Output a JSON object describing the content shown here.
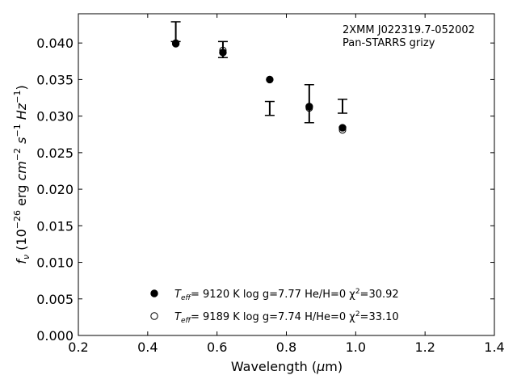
{
  "chart_data": {
    "type": "scatter",
    "title": "",
    "xlabel": "Wavelength (μm)",
    "ylabel": "f_ν (10^-26 erg cm^-2 s^-1 Hz^-1)",
    "xlim": [
      0.2,
      1.4
    ],
    "ylim": [
      0.0,
      0.044
    ],
    "x_ticks": [
      "0.2",
      "0.4",
      "0.6",
      "0.8",
      "1.0",
      "1.2",
      "1.4"
    ],
    "y_ticks": [
      "0.000",
      "0.005",
      "0.010",
      "0.015",
      "0.020",
      "0.025",
      "0.030",
      "0.035",
      "0.040"
    ],
    "annotation": [
      "2XMM J022319.7-052002",
      "Pan-STARRS grizy"
    ],
    "observed": {
      "x": [
        0.481,
        0.617,
        0.752,
        0.866,
        0.962
      ],
      "y": [
        0.0416,
        0.039,
        0.0311,
        0.0317,
        0.0314
      ],
      "yerr_low": [
        0.0014,
        0.001,
        0.001,
        0.0026,
        0.001
      ],
      "yerr_high": [
        0.0013,
        0.0012,
        0.0009,
        0.0026,
        0.0009
      ]
    },
    "series": [
      {
        "name": "T_eff= 9120 K  log g=7.77  He/H=0  χ²=30.92",
        "marker": "filled-circle",
        "x": [
          0.481,
          0.617,
          0.752,
          0.866,
          0.962
        ],
        "y": [
          0.0399,
          0.0387,
          0.035,
          0.0313,
          0.0284
        ]
      },
      {
        "name": "T_eff= 9189 K  log g=7.74  H/He=0  χ²=33.10",
        "marker": "open-circle",
        "x": [
          0.481,
          0.617,
          0.752,
          0.866,
          0.962
        ],
        "y": [
          0.04,
          0.039,
          0.035,
          0.0311,
          0.0281
        ]
      }
    ],
    "legend": [
      {
        "teff_label": "T",
        "teff_sub": "eff",
        "text": "=  9120 K  log g=7.77  He/H=0  χ",
        "chi_sup": "2",
        "chi_val": "=30.92"
      },
      {
        "teff_label": "T",
        "teff_sub": "eff",
        "text": "=  9189 K  log g=7.74  H/He=0  χ",
        "chi_sup": "2",
        "chi_val": "=33.10"
      }
    ],
    "legend_position": "lower-center",
    "grid": false
  }
}
